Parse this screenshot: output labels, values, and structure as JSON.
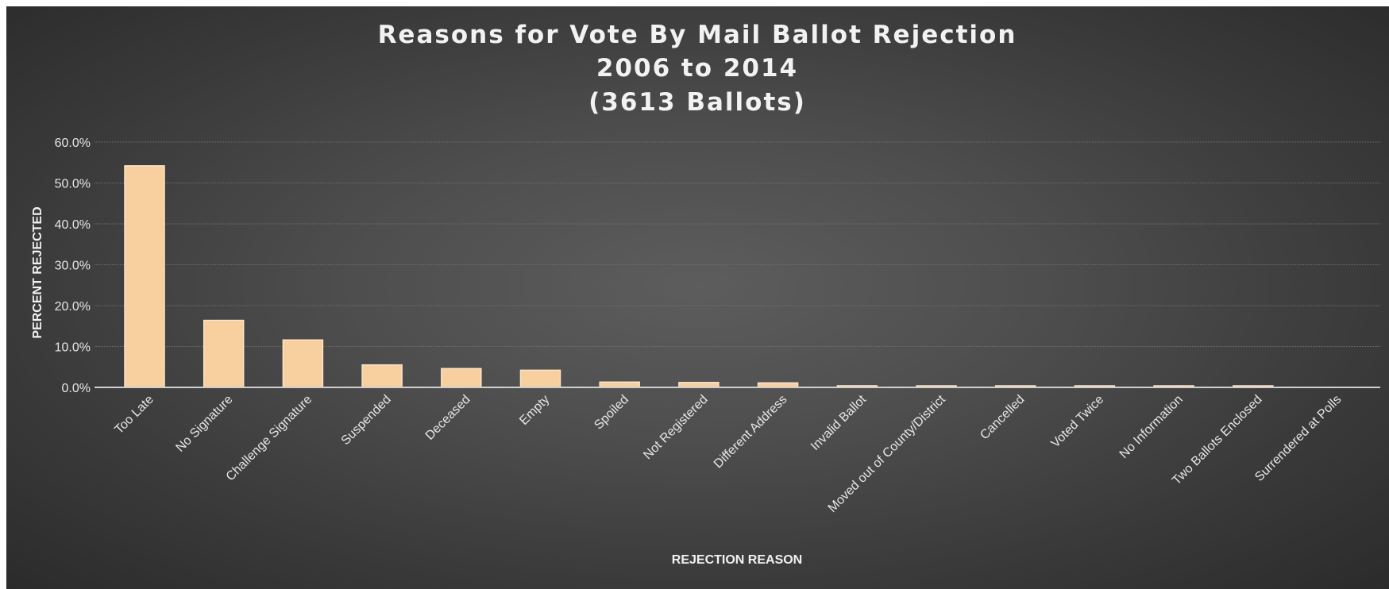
{
  "chart_data": {
    "type": "bar",
    "title": [
      "Reasons for Vote By Mail Ballot Rejection",
      "2006 to 2014",
      "(3613 Ballots)"
    ],
    "xlabel": "REJECTION REASON",
    "ylabel": "PERCENT REJECTED",
    "ylim": [
      0,
      60
    ],
    "yticks": [
      "0.0%",
      "10.0%",
      "20.0%",
      "30.0%",
      "40.0%",
      "50.0%",
      "60.0%"
    ],
    "grid": true,
    "bar_color": "#f8cf9f",
    "background_color": "#4a4a4a",
    "categories": [
      "Too Late",
      "No Signature",
      "Challenge Signature",
      "Suspended",
      "Deceased",
      "Empty",
      "Spoiled",
      "Not Registered",
      "Different Address",
      "Invalid Ballot",
      "Moved out of County/District",
      "Cancelled",
      "Voted Twice",
      "No Information",
      "Two Ballots Enclosed",
      "Surrendered at Polls"
    ],
    "values": [
      54.2,
      16.4,
      11.6,
      5.5,
      4.6,
      4.2,
      1.3,
      1.2,
      1.1,
      0.4,
      0.3,
      0.2,
      0.2,
      0.2,
      0.1,
      0.0
    ]
  }
}
